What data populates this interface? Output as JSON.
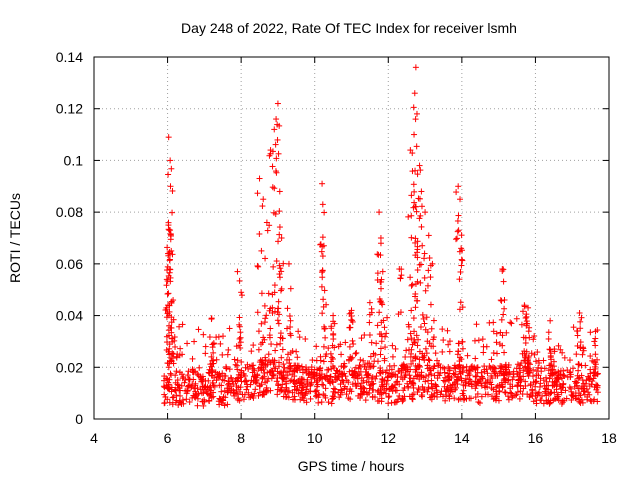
{
  "chart_data": {
    "type": "scatter",
    "title": "Day 248 of 2022, Rate Of TEC Index for receiver lsmh",
    "xlabel": "GPS time / hours",
    "ylabel": "ROTI / TECUs",
    "xlim": [
      4,
      18
    ],
    "ylim": [
      0,
      0.14
    ],
    "xticks": [
      "4",
      "6",
      "8",
      "10",
      "12",
      "14",
      "16",
      "18"
    ],
    "yticks": [
      "0",
      "0.02",
      "0.04",
      "0.06",
      "0.08",
      "0.1",
      "0.12",
      "0.14"
    ],
    "grid": true,
    "marker": "plus",
    "color": "#ff0000",
    "series": [
      {
        "name": "ROTI",
        "baseline": [
          [
            5.9,
            0.013
          ],
          [
            6.5,
            0.012
          ],
          [
            7.0,
            0.012
          ],
          [
            7.5,
            0.012
          ],
          [
            8.0,
            0.013
          ],
          [
            8.5,
            0.016
          ],
          [
            9.0,
            0.016
          ],
          [
            9.5,
            0.014
          ],
          [
            10.0,
            0.013
          ],
          [
            10.5,
            0.013
          ],
          [
            11.0,
            0.014
          ],
          [
            11.5,
            0.014
          ],
          [
            12.0,
            0.013
          ],
          [
            12.5,
            0.014
          ],
          [
            13.0,
            0.015
          ],
          [
            13.5,
            0.014
          ],
          [
            14.0,
            0.014
          ],
          [
            14.5,
            0.013
          ],
          [
            15.0,
            0.014
          ],
          [
            15.5,
            0.014
          ],
          [
            15.75,
            0.016
          ],
          [
            16.0,
            0.013
          ],
          [
            16.5,
            0.012
          ],
          [
            17.0,
            0.013
          ],
          [
            17.5,
            0.013
          ],
          [
            17.7,
            0.013
          ]
        ],
        "peaks": [
          [
            5.98,
            0.054
          ],
          [
            6.02,
            0.064
          ],
          [
            6.05,
            0.073
          ],
          [
            6.08,
            0.09
          ],
          [
            6.07,
            0.1
          ],
          [
            6.03,
            0.109
          ],
          [
            6.1,
            0.065
          ],
          [
            6.15,
            0.046
          ],
          [
            7.2,
            0.039
          ],
          [
            7.9,
            0.057
          ],
          [
            8.0,
            0.049
          ],
          [
            8.5,
            0.093
          ],
          [
            8.6,
            0.085
          ],
          [
            8.7,
            0.076
          ],
          [
            8.8,
            0.104
          ],
          [
            8.9,
            0.112
          ],
          [
            8.95,
            0.116
          ],
          [
            9.0,
            0.122
          ],
          [
            9.05,
            0.088
          ],
          [
            9.1,
            0.07
          ],
          [
            9.3,
            0.06
          ],
          [
            10.2,
            0.091
          ],
          [
            10.22,
            0.083
          ],
          [
            10.25,
            0.067
          ],
          [
            10.5,
            0.04
          ],
          [
            11.0,
            0.042
          ],
          [
            11.5,
            0.045
          ],
          [
            11.75,
            0.08
          ],
          [
            11.8,
            0.07
          ],
          [
            11.85,
            0.057
          ],
          [
            12.3,
            0.058
          ],
          [
            12.6,
            0.104
          ],
          [
            12.7,
            0.11
          ],
          [
            12.72,
            0.126
          ],
          [
            12.75,
            0.136
          ],
          [
            12.78,
            0.118
          ],
          [
            12.85,
            0.098
          ],
          [
            12.9,
            0.088
          ],
          [
            13.0,
            0.08
          ],
          [
            13.1,
            0.071
          ],
          [
            13.2,
            0.06
          ],
          [
            13.9,
            0.09
          ],
          [
            13.95,
            0.085
          ],
          [
            13.98,
            0.066
          ],
          [
            15.1,
            0.058
          ],
          [
            15.8,
            0.043
          ],
          [
            15.7,
            0.044
          ],
          [
            16.4,
            0.038
          ],
          [
            17.2,
            0.041
          ],
          [
            17.6,
            0.03
          ]
        ]
      }
    ]
  }
}
